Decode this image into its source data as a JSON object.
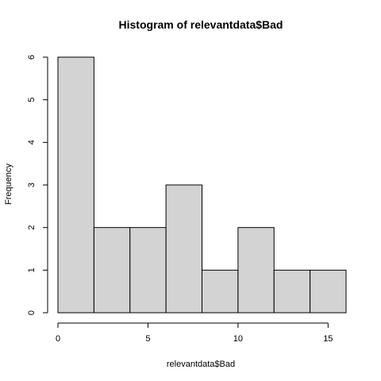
{
  "chart_data": {
    "type": "bar",
    "title": "Histogram of relevantdata$Bad",
    "xlabel": "relevantdata$Bad",
    "ylabel": "Frequency",
    "bins": [
      {
        "from": 0,
        "to": 2,
        "count": 6
      },
      {
        "from": 2,
        "to": 4,
        "count": 2
      },
      {
        "from": 4,
        "to": 6,
        "count": 2
      },
      {
        "from": 6,
        "to": 8,
        "count": 3
      },
      {
        "from": 8,
        "to": 10,
        "count": 1
      },
      {
        "from": 10,
        "to": 12,
        "count": 2
      },
      {
        "from": 12,
        "to": 14,
        "count": 1
      },
      {
        "from": 14,
        "to": 16,
        "count": 1
      }
    ],
    "xlim": [
      0,
      16
    ],
    "ylim": [
      0,
      6
    ],
    "x_ticks": [
      "0",
      "5",
      "10",
      "15"
    ],
    "y_ticks": [
      "0",
      "1",
      "2",
      "3",
      "4",
      "5",
      "6"
    ],
    "bar_color": "#d3d3d3",
    "grid": false,
    "legend": "none"
  }
}
